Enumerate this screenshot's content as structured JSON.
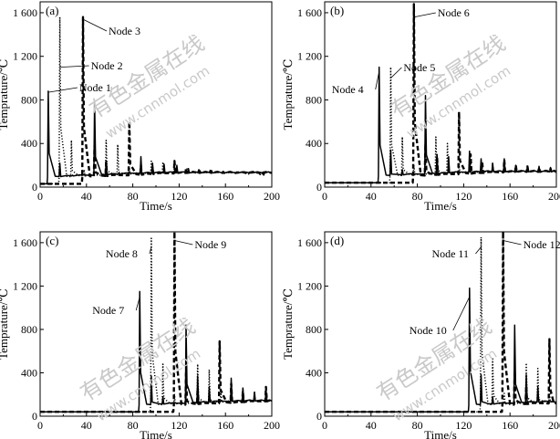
{
  "watermark": {
    "main": "有色金属在线",
    "url": "www.cnnmol.com"
  },
  "chart_data": [
    {
      "type": "line",
      "panel_label": "(a)",
      "xlabel": "Time/s",
      "ylabel": "Temprature/℃",
      "xlim": [
        0,
        200
      ],
      "ylim": [
        0,
        1700
      ],
      "xticks": [
        0,
        40,
        80,
        120,
        160,
        200
      ],
      "yticks": [
        400,
        800,
        1200,
        1600
      ],
      "ytick_labels": [
        "400",
        "800",
        "1 200",
        "1 600"
      ],
      "series": [
        {
          "name": "Node 1",
          "style": "solid",
          "baseline": 30,
          "first": 7,
          "peaks": [
            [
              7,
              880
            ],
            [
              17,
              220
            ],
            [
              28,
              110
            ],
            [
              47,
              790
            ],
            [
              57,
              240
            ],
            [
              68,
              130
            ],
            [
              87,
              280
            ],
            [
              97,
              220
            ],
            [
              107,
              210
            ],
            [
              118,
              200
            ],
            [
              128,
              170
            ],
            [
              138,
              150
            ],
            [
              148,
              150
            ],
            [
              158,
              140
            ],
            [
              170,
              140
            ],
            [
              182,
              130
            ],
            [
              193,
              110
            ]
          ]
        },
        {
          "name": "Node 2",
          "style": "dotted",
          "baseline": 30,
          "first": 17,
          "peaks": [
            [
              17,
              1560
            ],
            [
              27,
              430
            ],
            [
              38,
              160
            ],
            [
              57,
              430
            ],
            [
              67,
              390
            ],
            [
              77,
              180
            ],
            [
              96,
              250
            ],
            [
              106,
              230
            ],
            [
              116,
              210
            ],
            [
              127,
              180
            ],
            [
              137,
              160
            ],
            [
              148,
              150
            ],
            [
              158,
              140
            ],
            [
              168,
              130
            ],
            [
              180,
              120
            ],
            [
              192,
              110
            ]
          ]
        },
        {
          "name": "Node 3",
          "style": "dashed",
          "baseline": 30,
          "first": 37,
          "peaks": [
            [
              37,
              1560
            ],
            [
              47,
              390
            ],
            [
              57,
              230
            ],
            [
              77,
              600
            ],
            [
              87,
              200
            ],
            [
              97,
              180
            ],
            [
              116,
              240
            ],
            [
              126,
              170
            ],
            [
              137,
              150
            ],
            [
              147,
              150
            ],
            [
              158,
              140
            ],
            [
              168,
              130
            ],
            [
              178,
              130
            ],
            [
              190,
              120
            ]
          ]
        }
      ],
      "annotations": [
        {
          "text": "Node 3",
          "point": [
            37,
            1540
          ]
        },
        {
          "text": "Node 2",
          "point": [
            17,
            1100
          ]
        },
        {
          "text": "Node 1",
          "point": [
            7,
            870
          ]
        }
      ]
    },
    {
      "type": "line",
      "panel_label": "(b)",
      "xlabel": "Time/s",
      "ylabel": "Temprature/℃",
      "xlim": [
        0,
        200
      ],
      "ylim": [
        0,
        1700
      ],
      "xticks": [
        0,
        40,
        80,
        120,
        160,
        200
      ],
      "yticks": [
        400,
        800,
        1200,
        1600
      ],
      "ytick_labels": [
        "400",
        "800",
        "1 200",
        "1 600"
      ],
      "series": [
        {
          "name": "Node 4",
          "style": "solid",
          "baseline": 40,
          "first": 47,
          "peaks": [
            [
              47,
              1100
            ],
            [
              57,
              340
            ],
            [
              67,
              160
            ],
            [
              87,
              840
            ],
            [
              97,
              300
            ],
            [
              107,
              280
            ],
            [
              125,
              330
            ],
            [
              135,
              260
            ],
            [
              145,
              220
            ],
            [
              155,
              260
            ],
            [
              165,
              200
            ],
            [
              175,
              190
            ],
            [
              185,
              190
            ],
            [
              195,
              180
            ]
          ]
        },
        {
          "name": "Node 5",
          "style": "dotted",
          "baseline": 40,
          "first": 57,
          "peaks": [
            [
              57,
              1100
            ],
            [
              67,
              460
            ],
            [
              77,
              200
            ],
            [
              96,
              460
            ],
            [
              106,
              400
            ],
            [
              116,
              220
            ],
            [
              135,
              240
            ],
            [
              145,
              220
            ],
            [
              155,
              200
            ],
            [
              165,
              190
            ],
            [
              175,
              180
            ],
            [
              185,
              170
            ],
            [
              195,
              160
            ]
          ]
        },
        {
          "name": "Node 6",
          "style": "dashed",
          "baseline": 40,
          "first": 77,
          "peaks": [
            [
              77,
              1680
            ],
            [
              87,
              400
            ],
            [
              97,
              280
            ],
            [
              116,
              690
            ],
            [
              126,
              300
            ],
            [
              136,
              230
            ],
            [
              155,
              250
            ],
            [
              165,
              200
            ],
            [
              175,
              190
            ],
            [
              185,
              180
            ],
            [
              195,
              170
            ]
          ]
        }
      ],
      "annotations": [
        {
          "text": "Node 6",
          "point": [
            77,
            1560
          ]
        },
        {
          "text": "Node 5",
          "point": [
            57,
            1000
          ]
        },
        {
          "text": "Node 4",
          "point": [
            47,
            1060
          ]
        }
      ]
    },
    {
      "type": "line",
      "panel_label": "(c)",
      "xlabel": "Time/s",
      "ylabel": "Temprature/℃",
      "xlim": [
        0,
        200
      ],
      "ylim": [
        0,
        1700
      ],
      "xticks": [
        0,
        40,
        80,
        120,
        160,
        200
      ],
      "yticks": [
        400,
        800,
        1200,
        1600
      ],
      "ytick_labels": [
        "400",
        "800",
        "1 200",
        "1 600"
      ],
      "series": [
        {
          "name": "Node 7",
          "style": "solid",
          "baseline": 40,
          "first": 86,
          "peaks": [
            [
              86,
              1150
            ],
            [
              96,
              370
            ],
            [
              106,
              180
            ],
            [
              126,
              840
            ],
            [
              136,
              370
            ],
            [
              146,
              270
            ],
            [
              165,
              350
            ],
            [
              175,
              260
            ],
            [
              185,
              220
            ],
            [
              195,
              250
            ]
          ]
        },
        {
          "name": "Node 8",
          "style": "dotted",
          "baseline": 40,
          "first": 96,
          "peaks": [
            [
              96,
              1640
            ],
            [
              106,
              480
            ],
            [
              116,
              200
            ],
            [
              136,
              480
            ],
            [
              146,
              430
            ],
            [
              156,
              230
            ],
            [
              175,
              260
            ],
            [
              185,
              230
            ],
            [
              195,
              220
            ]
          ]
        },
        {
          "name": "Node 9",
          "style": "dashed",
          "baseline": 40,
          "first": 116,
          "peaks": [
            [
              116,
              1700
            ],
            [
              126,
              400
            ],
            [
              136,
              260
            ],
            [
              155,
              690
            ],
            [
              165,
              300
            ],
            [
              175,
              230
            ],
            [
              195,
              270
            ]
          ]
        }
      ],
      "annotations": [
        {
          "text": "Node 9",
          "point": [
            116,
            1620
          ]
        },
        {
          "text": "Node 8",
          "point": [
            96,
            1560
          ]
        },
        {
          "text": "Node 7",
          "point": [
            86,
            1100
          ]
        }
      ]
    },
    {
      "type": "line",
      "panel_label": "(d)",
      "xlabel": "Time/s",
      "ylabel": "Temprature/℃",
      "xlim": [
        0,
        200
      ],
      "ylim": [
        0,
        1700
      ],
      "xticks": [
        0,
        40,
        80,
        120,
        160,
        200
      ],
      "yticks": [
        400,
        800,
        1200,
        1600
      ],
      "ytick_labels": [
        "400",
        "800",
        "1 200",
        "1 600"
      ],
      "series": [
        {
          "name": "Node 10",
          "style": "solid",
          "baseline": 40,
          "first": 125,
          "peaks": [
            [
              125,
              1180
            ],
            [
              135,
              380
            ],
            [
              145,
              180
            ],
            [
              164,
              840
            ],
            [
              174,
              380
            ],
            [
              184,
              270
            ]
          ]
        },
        {
          "name": "Node 11",
          "style": "dotted",
          "baseline": 40,
          "first": 135,
          "peaks": [
            [
              135,
              1650
            ],
            [
              145,
              540
            ],
            [
              155,
              210
            ],
            [
              174,
              490
            ],
            [
              184,
              440
            ],
            [
              194,
              230
            ]
          ]
        },
        {
          "name": "Node 12",
          "style": "dashed",
          "baseline": 40,
          "first": 154,
          "peaks": [
            [
              154,
              1700
            ],
            [
              164,
              420
            ],
            [
              174,
              280
            ],
            [
              194,
              710
            ]
          ]
        }
      ],
      "annotations": [
        {
          "text": "Node 12",
          "point": [
            154,
            1620
          ]
        },
        {
          "text": "Node 11",
          "point": [
            135,
            1560
          ]
        },
        {
          "text": "Node 10",
          "point": [
            125,
            1100
          ]
        }
      ]
    }
  ]
}
